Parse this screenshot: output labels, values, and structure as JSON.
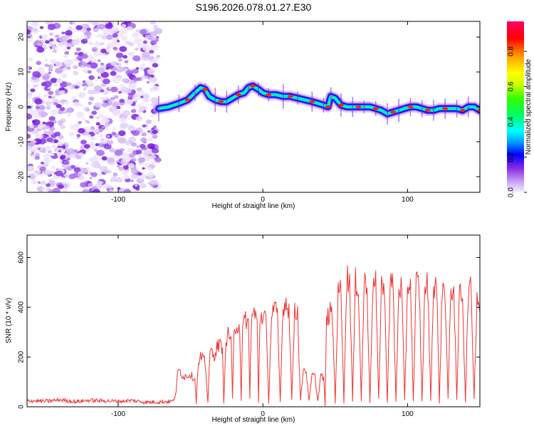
{
  "title": "S196.2026.078.01.27.E30",
  "chart_data": [
    {
      "type": "heatmap",
      "xlabel": "Height of straight line (km)",
      "ylabel": "Frequency (Hz)",
      "xlim": [
        -163,
        150
      ],
      "ylim": [
        -24.5,
        24.5
      ],
      "x_ticks": [
        -100,
        0,
        100
      ],
      "y_ticks": [
        -20,
        -10,
        0,
        10,
        20
      ],
      "noise_region_x": [
        -163,
        -72
      ],
      "ridge": {
        "x": [
          -72,
          -65,
          -58,
          -52,
          -47,
          -43,
          -40,
          -37,
          -33,
          -29,
          -25,
          -21,
          -17,
          -13,
          -10,
          -7,
          -3,
          0,
          4,
          9,
          14,
          19,
          24,
          29,
          34,
          38,
          42,
          45,
          47,
          50,
          54,
          58,
          62,
          66,
          70,
          74,
          78,
          82,
          86,
          90,
          94,
          98,
          102,
          106,
          110,
          114,
          118,
          122,
          126,
          130,
          134,
          138,
          142,
          146,
          150
        ],
        "y": [
          -0.5,
          0,
          1,
          2,
          4,
          5.5,
          5,
          3,
          2,
          1.5,
          1.5,
          2.5,
          3.5,
          4,
          5.5,
          6,
          5,
          4,
          3.5,
          3.5,
          3,
          3,
          2.5,
          2,
          1.5,
          1,
          0.5,
          0,
          3,
          2.5,
          0.5,
          0,
          0,
          0,
          0,
          0,
          -0.5,
          -1,
          -2,
          -1.5,
          -1,
          -0.5,
          0,
          0,
          -0.5,
          -1,
          -1,
          -0.5,
          -0.5,
          -0.5,
          -0.5,
          -1,
          0,
          0,
          -1
        ]
      },
      "colorbar": {
        "label": "Normalized spectral amplitude",
        "min": 0.0,
        "max": 0.97,
        "ticks": [
          0.0,
          0.2,
          0.4,
          0.6,
          0.8
        ],
        "tick_labels": [
          "0.0",
          "0.2",
          "0.4",
          "0.6",
          "0.8"
        ],
        "colormap": [
          "#f5efff",
          "#c9a6f5",
          "#8a2be2",
          "#0000ff",
          "#00aaff",
          "#00ffff",
          "#00ff66",
          "#33ff00",
          "#ccff00",
          "#ffff00",
          "#ff9900",
          "#ff0000",
          "#ff0066"
        ]
      }
    },
    {
      "type": "line",
      "xlabel": "Height of straight line (km)",
      "ylabel": "SNR (10 * v/v)",
      "xlim": [
        -163,
        150
      ],
      "ylim": [
        0,
        690
      ],
      "x_ticks": [
        -100,
        0,
        100
      ],
      "y_ticks": [
        0,
        200,
        400,
        600
      ],
      "series": [
        {
          "name": "SNR",
          "color": "#ee3333",
          "x": [
            -163,
            -150,
            -140,
            -130,
            -120,
            -110,
            -100,
            -90,
            -80,
            -70,
            -62,
            -60,
            -59,
            -58,
            -55,
            -50,
            -47,
            -46,
            -45,
            -43,
            -40,
            -38,
            -37,
            -36,
            -34,
            -31,
            -28,
            -27,
            -26,
            -24,
            -22,
            -21,
            -20,
            -18,
            -16,
            -15,
            -14,
            -12,
            -10,
            -9,
            -8,
            -6,
            -4,
            -3,
            -2,
            0,
            2,
            4,
            6,
            8,
            10,
            12,
            14,
            16,
            18,
            20,
            22,
            24,
            26,
            28,
            30,
            32,
            34,
            36,
            38,
            40,
            42,
            43,
            44,
            46,
            48,
            50,
            52,
            54,
            56,
            58,
            60,
            62,
            64,
            66,
            68,
            70,
            72,
            74,
            76,
            78,
            80,
            82,
            84,
            86,
            88,
            90,
            92,
            94,
            96,
            98,
            100,
            102,
            104,
            106,
            108,
            110,
            112,
            114,
            116,
            118,
            120,
            122,
            124,
            126,
            128,
            130,
            132,
            134,
            136,
            138,
            140,
            142,
            144,
            146,
            148,
            150
          ],
          "y": [
            25,
            22,
            28,
            20,
            26,
            24,
            22,
            25,
            18,
            20,
            22,
            60,
            130,
            150,
            120,
            130,
            110,
            20,
            150,
            200,
            180,
            20,
            170,
            230,
            200,
            250,
            240,
            20,
            210,
            300,
            280,
            30,
            280,
            340,
            320,
            30,
            300,
            360,
            330,
            30,
            350,
            380,
            340,
            20,
            360,
            370,
            360,
            20,
            380,
            400,
            360,
            20,
            410,
            420,
            400,
            30,
            400,
            380,
            20,
            160,
            140,
            20,
            130,
            120,
            20,
            130,
            110,
            10,
            340,
            380,
            370,
            20,
            450,
            480,
            20,
            520,
            510,
            20,
            500,
            490,
            20,
            500,
            480,
            20,
            480,
            490,
            30,
            500,
            470,
            20,
            500,
            480,
            20,
            490,
            470,
            20,
            490,
            500,
            20,
            500,
            490,
            20,
            480,
            490,
            20,
            490,
            500,
            20,
            480,
            470,
            30,
            470,
            480,
            20,
            480,
            450,
            20,
            460,
            470,
            30,
            460,
            380
          ]
        }
      ]
    }
  ]
}
